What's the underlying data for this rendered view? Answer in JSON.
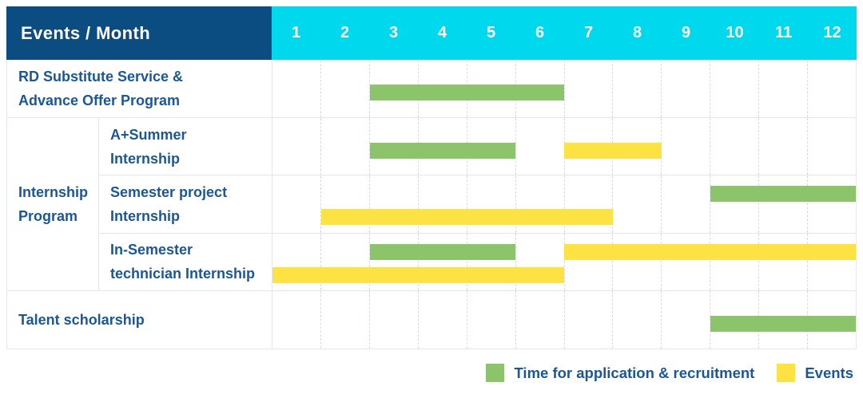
{
  "colors": {
    "navy": "#0B4C81",
    "cyan": "#00D8EE",
    "green": "#8BC46B",
    "yellow": "#FDE243",
    "label_blue": "#1B5796",
    "grid_dash": "#D9DCE1",
    "row_border": "#E4E7EA"
  },
  "header": {
    "title": "Events / Month",
    "months": [
      "1",
      "2",
      "3",
      "4",
      "5",
      "6",
      "7",
      "8",
      "9",
      "10",
      "11",
      "12"
    ]
  },
  "sections": [
    {
      "type": "single",
      "label_lines": [
        "RD Substitute Service &",
        "Advance Offer Program"
      ],
      "bars": [
        {
          "color": "green",
          "start_month": 3,
          "end_month": 6,
          "lane": "center"
        }
      ]
    },
    {
      "type": "group",
      "label_lines": [
        "Internship",
        "Program"
      ],
      "rows": [
        {
          "label_lines": [
            "A+Summer",
            "Internship"
          ],
          "bars": [
            {
              "color": "green",
              "start_month": 3,
              "end_month": 5,
              "lane": "center"
            },
            {
              "color": "yellow",
              "start_month": 7,
              "end_month": 8,
              "lane": "center"
            }
          ]
        },
        {
          "label_lines": [
            "Semester project",
            "Internship"
          ],
          "bars": [
            {
              "color": "green",
              "start_month": 10,
              "end_month": 12,
              "lane": "top"
            },
            {
              "color": "yellow",
              "start_month": 2,
              "end_month": 7,
              "lane": "bottom"
            }
          ]
        },
        {
          "label_lines": [
            "In-Semester",
            "technician Internship"
          ],
          "bars": [
            {
              "color": "green",
              "start_month": 3,
              "end_month": 5,
              "lane": "top"
            },
            {
              "color": "yellow",
              "start_month": 7,
              "end_month": 12,
              "lane": "top"
            },
            {
              "color": "yellow",
              "start_month": 1,
              "end_month": 6,
              "lane": "bottom"
            }
          ]
        }
      ]
    },
    {
      "type": "single",
      "label_lines": [
        "Talent scholarship"
      ],
      "bars": [
        {
          "color": "green",
          "start_month": 10,
          "end_month": 12,
          "lane": "center"
        }
      ]
    }
  ],
  "legend": {
    "items": [
      {
        "label": "Time for application & recruitment",
        "color": "green"
      },
      {
        "label": "Events",
        "color": "yellow"
      }
    ]
  },
  "chart_data": {
    "type": "bar",
    "subtype": "gantt",
    "title": "Events / Month",
    "x_unit": "month",
    "x_ticks": [
      1,
      2,
      3,
      4,
      5,
      6,
      7,
      8,
      9,
      10,
      11,
      12
    ],
    "xlim": [
      1,
      12
    ],
    "grid": true,
    "legend_position": "bottom-right",
    "legend": [
      "Time for application & recruitment",
      "Events"
    ],
    "series_colors": {
      "application_recruitment": "#8BC46B",
      "events": "#FDE243"
    },
    "rows": [
      {
        "event": "RD Substitute Service & Advance Offer Program",
        "group": null,
        "application_recruitment_months": [
          [
            3,
            6
          ]
        ],
        "events_months": []
      },
      {
        "event": "A+Summer Internship",
        "group": "Internship Program",
        "application_recruitment_months": [
          [
            3,
            5
          ]
        ],
        "events_months": [
          [
            7,
            8
          ]
        ]
      },
      {
        "event": "Semester project Internship",
        "group": "Internship Program",
        "application_recruitment_months": [
          [
            10,
            12
          ]
        ],
        "events_months": [
          [
            2,
            7
          ]
        ]
      },
      {
        "event": "In-Semester technician Internship",
        "group": "Internship Program",
        "application_recruitment_months": [
          [
            3,
            5
          ]
        ],
        "events_months": [
          [
            1,
            6
          ],
          [
            7,
            12
          ]
        ]
      },
      {
        "event": "Talent scholarship",
        "group": null,
        "application_recruitment_months": [
          [
            10,
            12
          ]
        ],
        "events_months": []
      }
    ]
  }
}
